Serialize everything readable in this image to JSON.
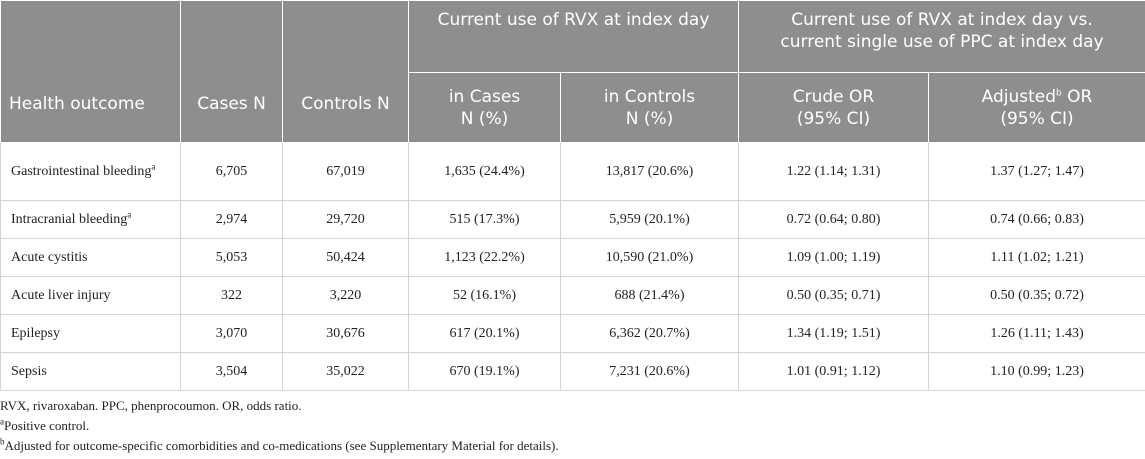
{
  "header": {
    "health_outcome": "Health outcome",
    "cases_n": "Cases N",
    "controls_n": "Controls N",
    "group_current_use": "Current use of RVX at index day",
    "group_vs_line1": "Current use of RVX at index day vs.",
    "group_vs_line2": "current single use of PPC at index day",
    "in_cases_line1": "in Cases",
    "in_cases_line2": "N (%)",
    "in_controls_line1": "in Controls",
    "in_controls_line2": "N (%)",
    "crude_or_line1": "Crude OR",
    "crude_or_line2": "(95% CI)",
    "adjusted_word": "Adjusted",
    "adjusted_sup": "b",
    "adjusted_suffix": " OR",
    "adjusted_line2": "(95% CI)"
  },
  "rows": [
    {
      "outcome": "Gastrointestinal bleeding",
      "sup": "a",
      "cases": "6,705",
      "controls": "67,019",
      "in_cases": "1,635 (24.4%)",
      "in_controls": "13,817 (20.6%)",
      "crude_or": "1.22 (1.14; 1.31)",
      "adjusted_or": "1.37 (1.27; 1.47)"
    },
    {
      "outcome": "Intracranial bleeding",
      "sup": "a",
      "cases": "2,974",
      "controls": "29,720",
      "in_cases": "515 (17.3%)",
      "in_controls": "5,959 (20.1%)",
      "crude_or": "0.72 (0.64; 0.80)",
      "adjusted_or": "0.74 (0.66; 0.83)"
    },
    {
      "outcome": "Acute cystitis",
      "sup": "",
      "cases": "5,053",
      "controls": "50,424",
      "in_cases": "1,123 (22.2%)",
      "in_controls": "10,590 (21.0%)",
      "crude_or": "1.09 (1.00; 1.19)",
      "adjusted_or": "1.11 (1.02; 1.21)"
    },
    {
      "outcome": "Acute liver injury",
      "sup": "",
      "cases": "322",
      "controls": "3,220",
      "in_cases": "52 (16.1%)",
      "in_controls": "688 (21.4%)",
      "crude_or": "0.50 (0.35; 0.71)",
      "adjusted_or": "0.50 (0.35; 0.72)"
    },
    {
      "outcome": "Epilepsy",
      "sup": "",
      "cases": "3,070",
      "controls": "30,676",
      "in_cases": "617 (20.1%)",
      "in_controls": "6,362 (20.7%)",
      "crude_or": "1.34 (1.19; 1.51)",
      "adjusted_or": "1.26 (1.11; 1.43)"
    },
    {
      "outcome": "Sepsis",
      "sup": "",
      "cases": "3,504",
      "controls": "35,022",
      "in_cases": "670 (19.1%)",
      "in_controls": "7,231 (20.6%)",
      "crude_or": "1.01 (0.91; 1.12)",
      "adjusted_or": "1.10 (0.99; 1.23)"
    }
  ],
  "footnotes": {
    "abbreviations": "RVX, rivaroxaban. PPC, phenprocoumon. OR, odds ratio.",
    "a_mark": "a",
    "a_text": "Positive control.",
    "b_mark": "b",
    "b_text": "Adjusted for outcome-specific comorbidities and co-medications (see Supplementary Material for details)."
  }
}
